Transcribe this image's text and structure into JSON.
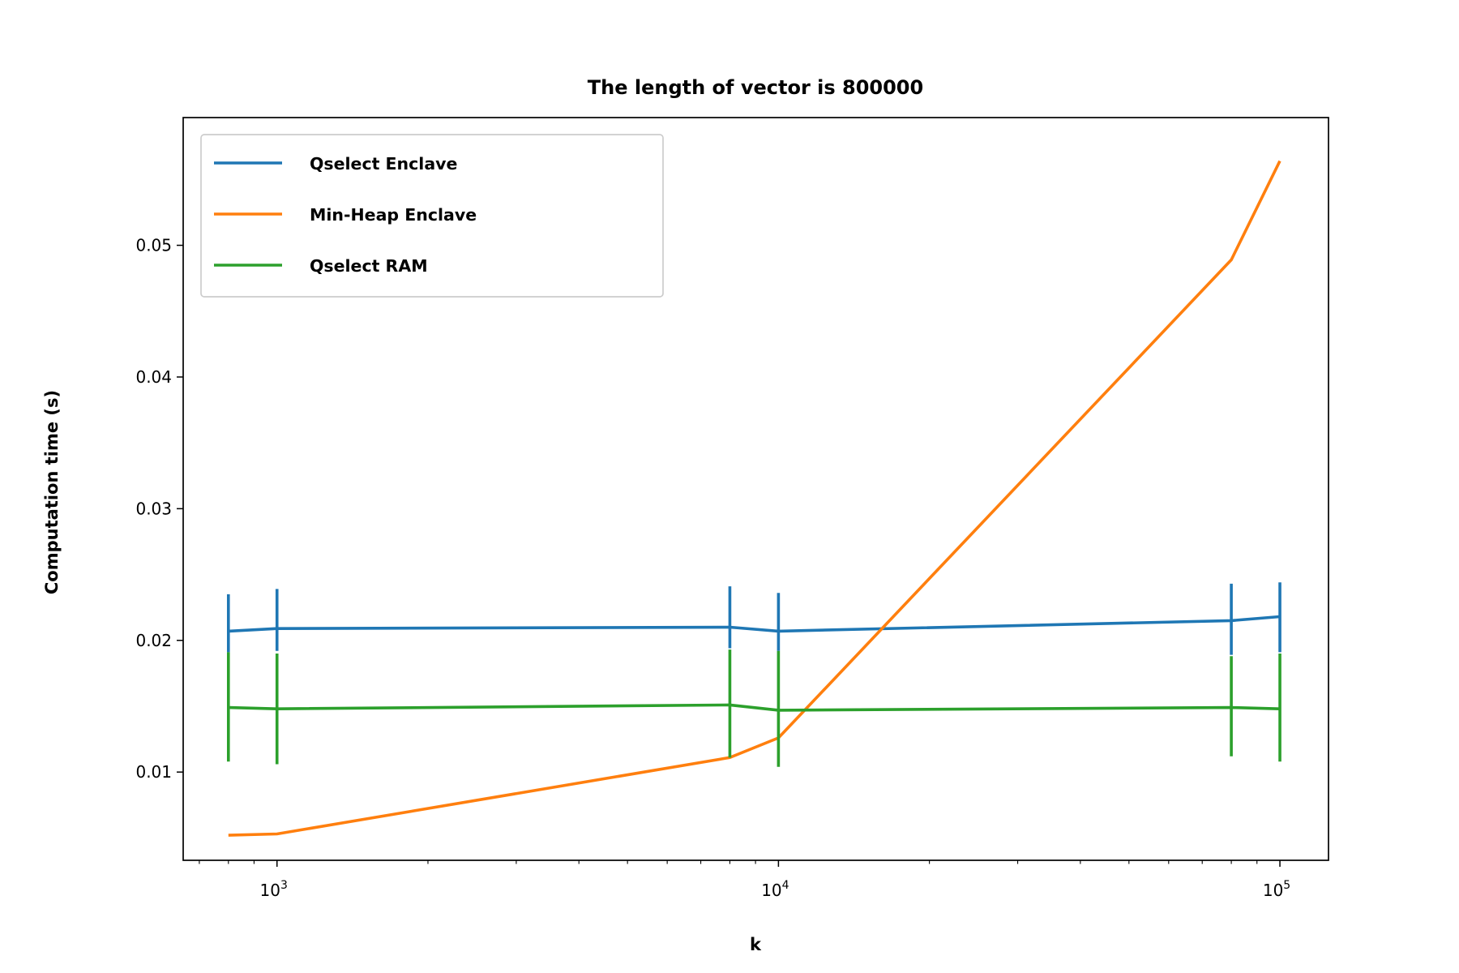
{
  "chart_data": {
    "type": "line",
    "title": "The length of vector is 800000",
    "xlabel": "k",
    "ylabel": "Computation time (s)",
    "xscale": "log",
    "xlim": [
      650,
      125000
    ],
    "ylim": [
      0.0033,
      0.0597
    ],
    "xticks": [
      {
        "value": 1000,
        "base": "10",
        "exp": "3"
      },
      {
        "value": 10000,
        "base": "10",
        "exp": "4"
      },
      {
        "value": 100000,
        "base": "10",
        "exp": "5"
      }
    ],
    "yticks": [
      {
        "value": 0.01,
        "label": "0.01"
      },
      {
        "value": 0.02,
        "label": "0.02"
      },
      {
        "value": 0.03,
        "label": "0.03"
      },
      {
        "value": 0.04,
        "label": "0.04"
      },
      {
        "value": 0.05,
        "label": "0.05"
      }
    ],
    "grid": false,
    "legend_position": "upper-left",
    "x": [
      800,
      1000,
      8000,
      10000,
      80000,
      100000
    ],
    "series": [
      {
        "name": "Qselect Enclave",
        "color": "#1f77b4",
        "values": [
          0.0207,
          0.0209,
          0.021,
          0.0207,
          0.0215,
          0.0218
        ],
        "err_low": [
          0.0191,
          0.0192,
          0.0194,
          0.0192,
          0.0189,
          0.0191
        ],
        "err_high": [
          0.0235,
          0.0239,
          0.0241,
          0.0236,
          0.0243,
          0.0244
        ]
      },
      {
        "name": "Min-Heap Enclave",
        "color": "#ff7f0e",
        "values": [
          0.0052,
          0.0053,
          0.0111,
          0.0126,
          0.0489,
          0.0564
        ]
      },
      {
        "name": "Qselect RAM",
        "color": "#2ca02c",
        "values": [
          0.0149,
          0.0148,
          0.0151,
          0.0147,
          0.0149,
          0.0148
        ],
        "err_low": [
          0.0108,
          0.0106,
          0.0111,
          0.0104,
          0.0112,
          0.0108
        ],
        "err_high": [
          0.0191,
          0.019,
          0.0193,
          0.0192,
          0.0188,
          0.019
        ]
      }
    ]
  }
}
